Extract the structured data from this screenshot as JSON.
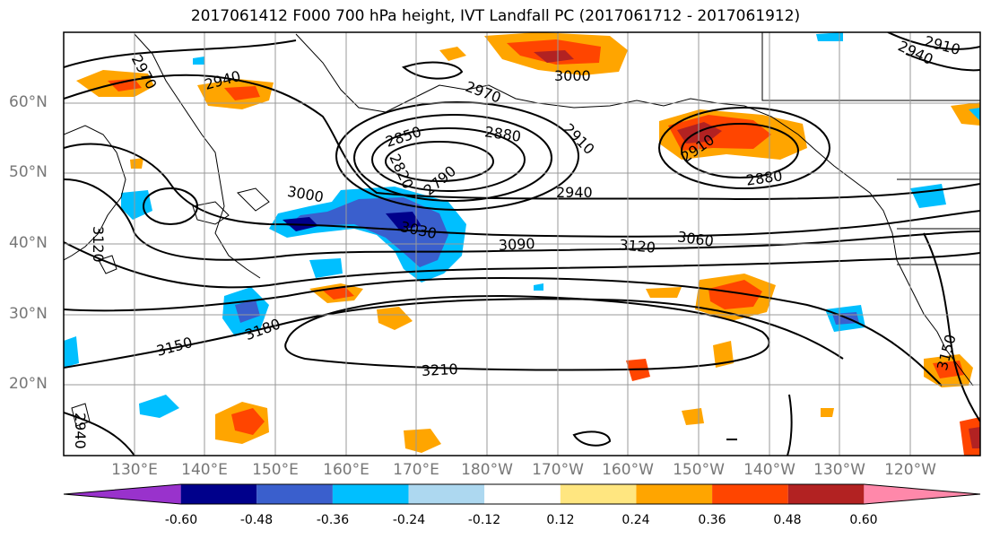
{
  "title": "2017061412 F000 700 hPa height, IVT Landfall PC (2017061712 - 2017061912)",
  "lat_labels": [
    "60°N",
    "50°N",
    "40°N",
    "30°N",
    "20°N"
  ],
  "lon_labels": [
    "130°E",
    "140°E",
    "150°E",
    "160°E",
    "170°E",
    "180°W",
    "170°W",
    "160°W",
    "150°W",
    "140°W",
    "130°W",
    "120°W"
  ],
  "contour_labels": [
    "2970",
    "2940",
    "3000",
    "2970",
    "2850",
    "2880",
    "2910",
    "2820",
    "2790",
    "3000",
    "3030",
    "2940",
    "3090",
    "3120",
    "3060",
    "2910",
    "2880",
    "2910",
    "2940",
    "3150",
    "3180",
    "3210",
    "3150",
    "3120",
    "2940"
  ],
  "colorbar": {
    "labels": [
      "-0.60",
      "-0.48",
      "-0.36",
      "-0.24",
      "-0.12",
      "0.12",
      "0.24",
      "0.36",
      "0.48",
      "0.60"
    ],
    "colors": [
      "#9932cc",
      "#00008b",
      "#3a5fcd",
      "#00bfff",
      "#add8f0",
      "#ffffff",
      "#ffe680",
      "#ffa500",
      "#ff4500",
      "#b22222",
      "#ff88aa"
    ]
  },
  "colors": {
    "land_fill": "#ffffff",
    "grid": "#999999",
    "contour": "#000000"
  }
}
